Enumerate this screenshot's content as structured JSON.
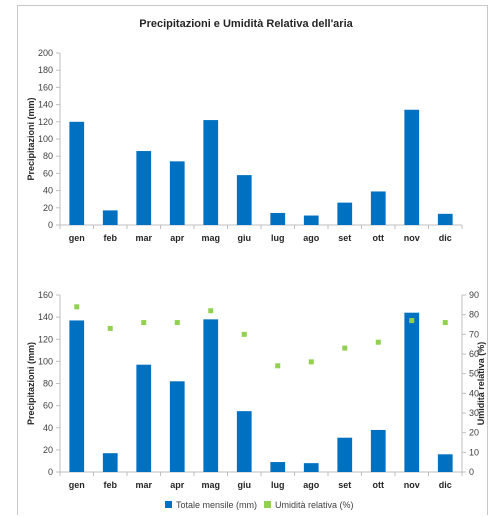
{
  "chart_data": [
    {
      "type": "bar",
      "title": "Precipitazioni e Umidità Relativa dell'aria",
      "ylabel": "Precipitazioni (mm)",
      "ylim": [
        0,
        200
      ],
      "yticks": [
        0,
        20,
        40,
        60,
        80,
        100,
        120,
        140,
        160,
        180,
        200
      ],
      "categories": [
        "gen",
        "feb",
        "mar",
        "apr",
        "mag",
        "giu",
        "lug",
        "ago",
        "set",
        "ott",
        "nov",
        "dic"
      ],
      "values": [
        120,
        17,
        86,
        74,
        122,
        58,
        14,
        11,
        26,
        39,
        134,
        13
      ],
      "color": "#0070C0",
      "grid": false
    },
    {
      "type": "bar",
      "ylabel": "Precipitazioni (mm)",
      "y2label": "Umidità relativa (%)",
      "ylim": [
        0,
        160
      ],
      "y2lim": [
        0,
        90
      ],
      "yticks": [
        0,
        20,
        40,
        60,
        80,
        100,
        120,
        140,
        160
      ],
      "y2ticks": [
        0,
        10,
        20,
        30,
        40,
        50,
        60,
        70,
        80,
        90
      ],
      "categories": [
        "gen",
        "feb",
        "mar",
        "apr",
        "mag",
        "giu",
        "lug",
        "ago",
        "set",
        "ott",
        "nov",
        "dic"
      ],
      "series": [
        {
          "name": "Totale mensile (mm)",
          "type": "bar",
          "axis": "left",
          "color": "#0070C0",
          "values": [
            137,
            17,
            97,
            82,
            138,
            55,
            9,
            8,
            31,
            38,
            144,
            16
          ]
        },
        {
          "name": "Umidità relativa (%)",
          "type": "scatter",
          "axis": "right",
          "color": "#92D050",
          "values": [
            84,
            73,
            76,
            76,
            82,
            70,
            54,
            56,
            63,
            66,
            77,
            76
          ]
        }
      ],
      "legend": "bottom",
      "grid": false
    }
  ]
}
